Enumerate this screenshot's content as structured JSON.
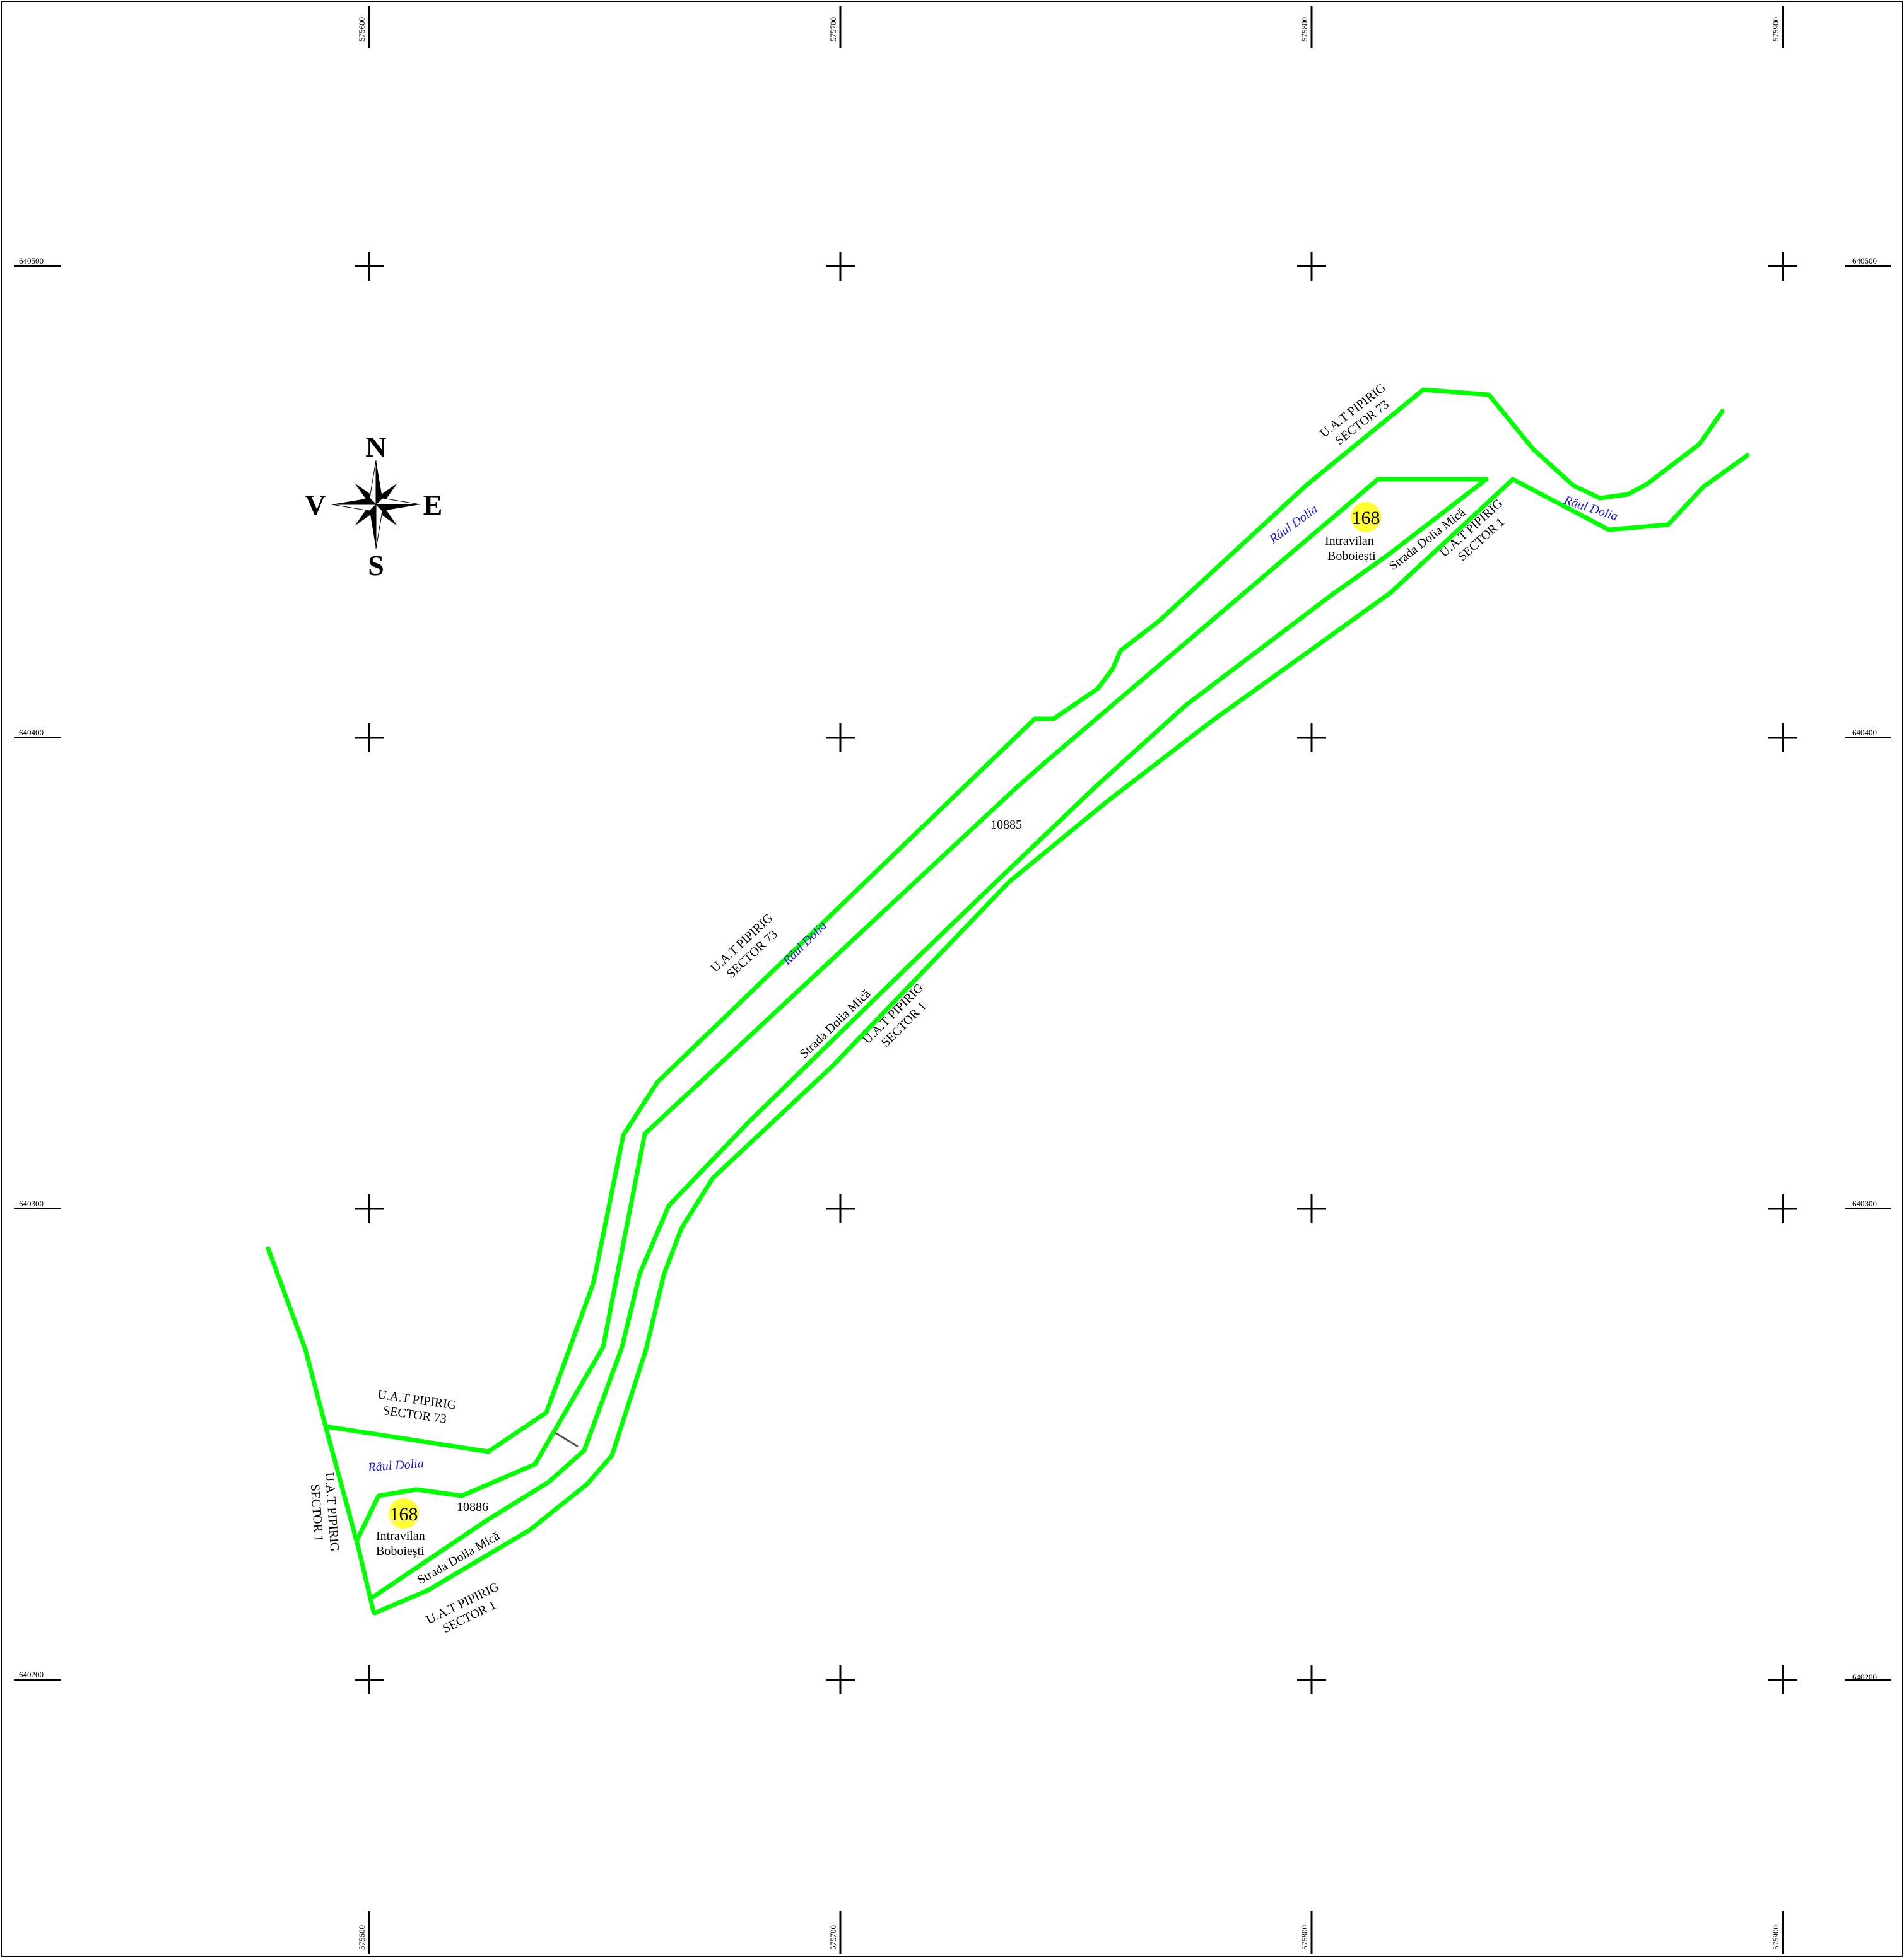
{
  "grid": {
    "x_ticks": [
      "575600",
      "575700",
      "575800",
      "575900"
    ],
    "y_ticks": [
      "640500",
      "640400",
      "640300",
      "640200"
    ]
  },
  "compass": {
    "north": "N",
    "south": "S",
    "east": "E",
    "west": "V"
  },
  "colors": {
    "boundary": "#00ff00",
    "river_label": "#1a1ad0",
    "badge": "#ffff33"
  },
  "labels": {
    "uat_sector73": [
      "U.A.T PIPIRIG",
      "SECTOR 73"
    ],
    "uat_sector1": [
      "U.A.T PIPIRIG",
      "SECTOR 1"
    ],
    "river": "Râul Dolia",
    "street": "Strada Dolia Mică",
    "parcel_main": "10885",
    "parcel_small": "10886",
    "intravilan": [
      "Intravilan",
      "Boboiești"
    ],
    "badge_number": "168"
  }
}
